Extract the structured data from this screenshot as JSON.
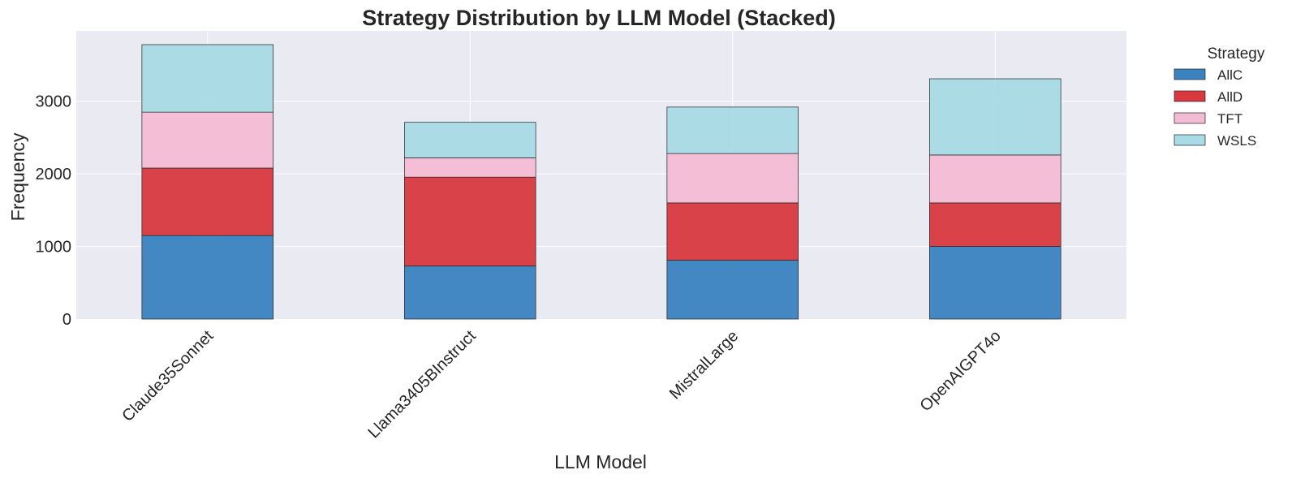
{
  "chart_data": {
    "type": "bar",
    "stacked": true,
    "title": "Strategy Distribution by LLM Model (Stacked)",
    "xlabel": "LLM Model",
    "ylabel": "Frequency",
    "categories": [
      "Claude35Sonnet",
      "Llama3405BInstruct",
      "MistralLarge",
      "OpenAIGPT4o"
    ],
    "series": [
      {
        "name": "AllC",
        "color": "#3a83bf",
        "values": [
          1150,
          730,
          810,
          1000
        ]
      },
      {
        "name": "AllD",
        "color": "#d8393f",
        "values": [
          930,
          1225,
          790,
          600
        ]
      },
      {
        "name": "TFT",
        "color": "#f4bcd4",
        "values": [
          770,
          265,
          680,
          660
        ]
      },
      {
        "name": "WSLS",
        "color": "#a8dbe5",
        "values": [
          930,
          490,
          640,
          1050
        ]
      }
    ],
    "ylim": [
      0,
      3970
    ],
    "yticks": [
      0,
      1000,
      2000,
      3000
    ],
    "grid": true,
    "legend": {
      "title": "Strategy",
      "position": "outside-right"
    }
  }
}
